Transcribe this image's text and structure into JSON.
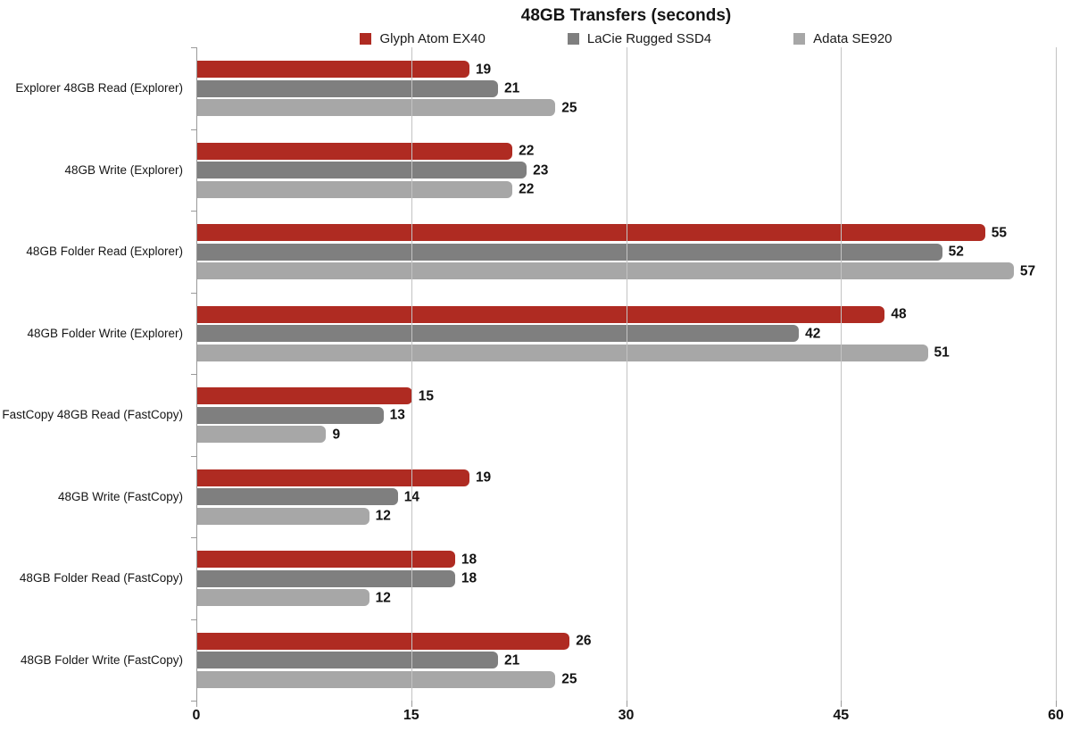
{
  "page": {
    "background": "#ffffff"
  },
  "chart_data": {
    "type": "bar",
    "orientation": "horizontal",
    "title": "48GB Transfers (seconds)",
    "categories": [
      "Explorer 48GB Read (Explorer)",
      "48GB Write (Explorer)",
      "48GB Folder Read (Explorer)",
      "48GB Folder Write (Explorer)",
      "FastCopy 48GB Read (FastCopy)",
      "48GB Write (FastCopy)",
      "48GB Folder Read (FastCopy)",
      "48GB Folder Write (FastCopy)"
    ],
    "series": [
      {
        "name": "Glyph Atom EX40",
        "color": "#af2b22",
        "values": [
          19,
          22,
          55,
          48,
          15,
          19,
          18,
          26
        ]
      },
      {
        "name": "LaCie Rugged SSD4",
        "color": "#7f7f7f",
        "values": [
          21,
          23,
          52,
          42,
          13,
          14,
          18,
          21
        ]
      },
      {
        "name": "Adata SE920",
        "color": "#a7a7a7",
        "values": [
          25,
          22,
          57,
          51,
          9,
          12,
          12,
          25
        ]
      }
    ],
    "x_ticks": [
      0,
      15,
      30,
      45,
      60
    ],
    "xlim": [
      0,
      60
    ],
    "xlabel": "",
    "ylabel": "",
    "grid": "vertical",
    "legend_position": "top",
    "value_labels": true,
    "axis_color": "#9a9a9a",
    "gridline_color": "#c3c3c3",
    "text_color": "#1a1a1a"
  }
}
